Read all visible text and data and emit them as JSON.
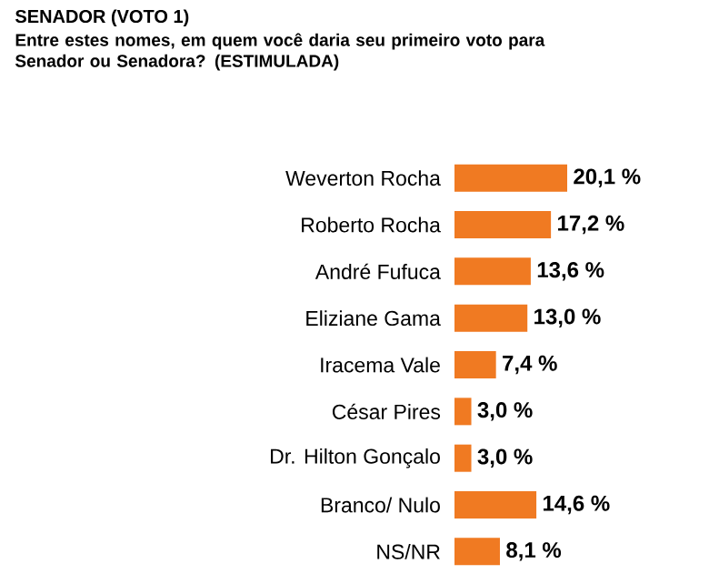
{
  "chart_data": {
    "type": "bar",
    "orientation": "horizontal",
    "title": "SENADOR (VOTO 1)",
    "subtitle": "Entre estes nomes, em quem você daria seu primeiro voto para Senador ou Senadora? (ESTIMULADA)",
    "categories": [
      "Weverton Rocha",
      "Roberto Rocha",
      "André Fufuca",
      "Eliziane Gama",
      "Iracema Vale",
      "César Pires",
      "Dr. Hilton Gonçalo",
      "Branco/ Nulo",
      "NS/NR"
    ],
    "values": [
      20.1,
      17.2,
      13.6,
      13.0,
      7.4,
      3.0,
      3.0,
      14.6,
      8.1
    ],
    "value_labels": [
      "20,1 %",
      "17,2 %",
      "13,6 %",
      "13,0 %",
      "7,4 %",
      "3,0 %",
      "3,0 %",
      "14,6 %",
      "8,1 %"
    ],
    "color": "#f07a22"
  }
}
